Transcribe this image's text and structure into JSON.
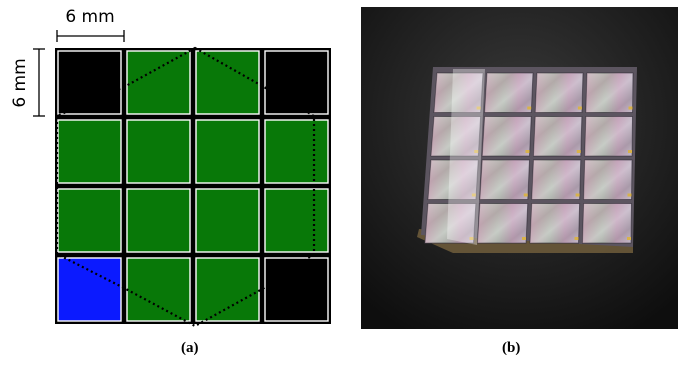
{
  "figure": {
    "panel_a": {
      "scale_x_label": "6 mm",
      "scale_y_label": "6 mm",
      "grid": {
        "rows": 4,
        "cols": 4,
        "cells": [
          [
            "black",
            "green",
            "green",
            "black"
          ],
          [
            "green",
            "green",
            "green",
            "green"
          ],
          [
            "green",
            "green",
            "green",
            "green"
          ],
          [
            "blue",
            "green",
            "green",
            "black"
          ]
        ]
      },
      "colors": {
        "black": "#000000",
        "green": "#087808",
        "blue": "#0b1aff",
        "outline": "#000000"
      },
      "caption": "(a)"
    },
    "panel_b": {
      "caption": "(b)"
    }
  }
}
